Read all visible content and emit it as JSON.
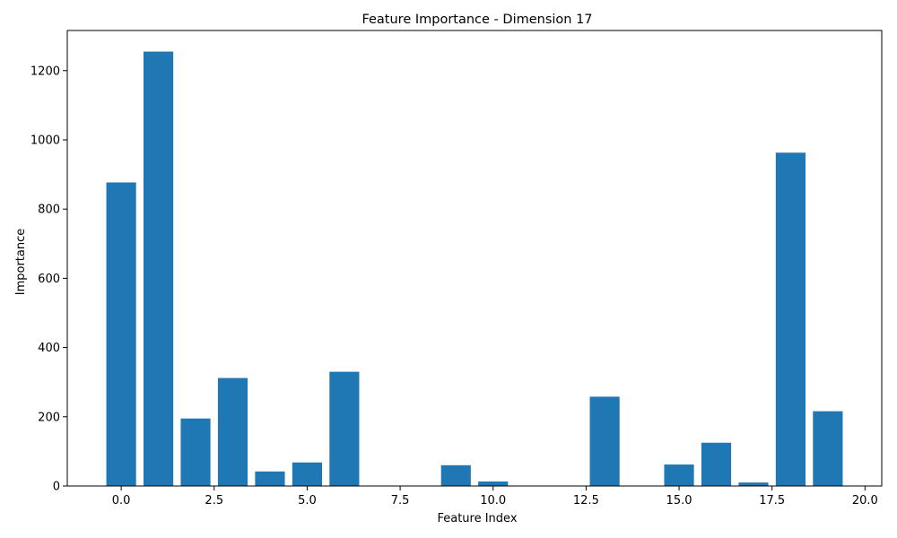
{
  "chart_data": {
    "type": "bar",
    "title": "Feature Importance - Dimension 17",
    "xlabel": "Feature Index",
    "ylabel": "Importance",
    "x": [
      0,
      1,
      2,
      3,
      4,
      5,
      6,
      7,
      8,
      9,
      10,
      11,
      12,
      13,
      14,
      15,
      16,
      17,
      18,
      19
    ],
    "values": [
      877,
      1255,
      195,
      312,
      42,
      68,
      330,
      0,
      0,
      60,
      13,
      0,
      0,
      258,
      0,
      62,
      125,
      10,
      963,
      216
    ],
    "bar_width": 0.8,
    "bar_color": "#1f77b4",
    "xlim": [
      -1.45,
      20.45
    ],
    "ylim": [
      0,
      1316
    ],
    "xticks": [
      0.0,
      2.5,
      5.0,
      7.5,
      10.0,
      12.5,
      15.0,
      17.5,
      20.0
    ],
    "xtick_labels": [
      "0.0",
      "2.5",
      "5.0",
      "7.5",
      "10.0",
      "12.5",
      "15.0",
      "17.5",
      "20.0"
    ],
    "yticks": [
      0,
      200,
      400,
      600,
      800,
      1000,
      1200
    ],
    "ytick_labels": [
      "0",
      "200",
      "400",
      "600",
      "800",
      "1000",
      "1200"
    ],
    "grid": false,
    "legend": "none"
  }
}
